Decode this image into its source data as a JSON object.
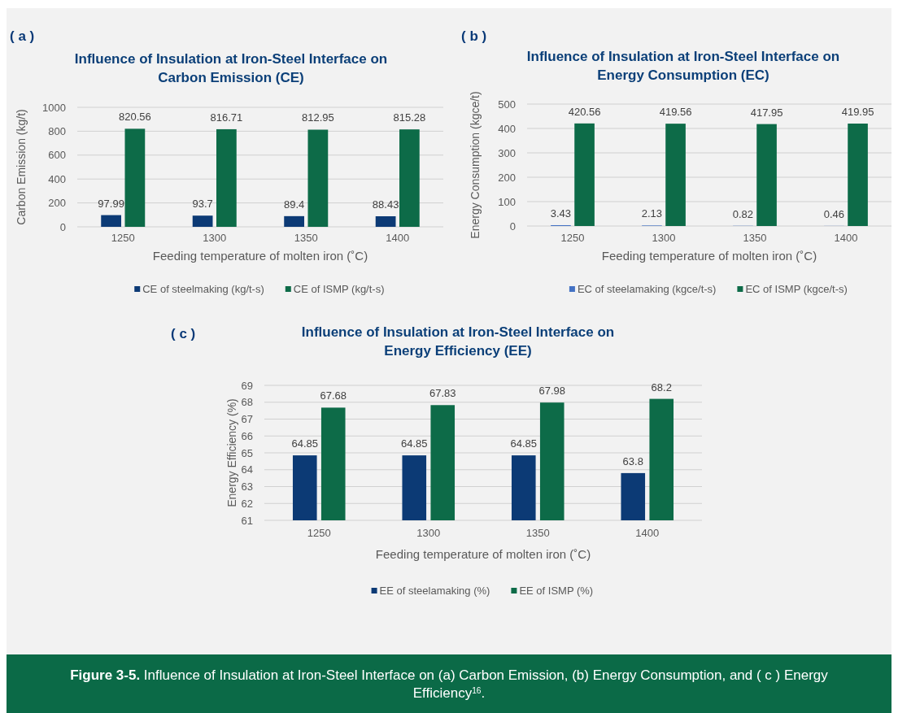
{
  "chart_data": [
    {
      "type": "bar",
      "title": "Influence of Insulation at Iron-Steel Interface on Carbon Emission (CE)",
      "xlabel": "Feeding temperature of molten iron (˚C)",
      "ylabel": "Carbon Emission (kg/t)",
      "categories": [
        "1250",
        "1300",
        "1350",
        "1400"
      ],
      "series": [
        {
          "name": "CE of steelmaking (kg/t-s)",
          "color": "#0c3a75",
          "values": [
            97.99,
            93.7,
            89.4,
            88.43
          ]
        },
        {
          "name": "CE of ISMP (kg/t-s)",
          "color": "#0d6b48",
          "values": [
            820.56,
            816.71,
            812.95,
            815.28
          ]
        }
      ],
      "ylim": [
        0,
        1000
      ],
      "yticks": [
        0,
        200,
        400,
        600,
        800,
        1000
      ],
      "grid": "y",
      "legend": "bottom",
      "data_labels": true,
      "annotations": [
        "( a )"
      ]
    },
    {
      "type": "bar",
      "title": "Influence of Insulation at Iron-Steel Interface on Energy Consumption (EC)",
      "xlabel": "Feeding temperature of molten iron (˚C)",
      "ylabel": "Energy Consumption (kgce/t)",
      "categories": [
        "1250",
        "1300",
        "1350",
        "1400"
      ],
      "series": [
        {
          "name": "EC of steelamaking (kgce/t-s)",
          "color": "#4472c4",
          "values": [
            3.43,
            2.13,
            0.82,
            0.46
          ]
        },
        {
          "name": "EC of ISMP (kgce/t-s)",
          "color": "#0d6b48",
          "values": [
            420.56,
            419.56,
            417.95,
            419.95
          ]
        }
      ],
      "ylim": [
        0,
        500
      ],
      "yticks": [
        0,
        100,
        200,
        300,
        400,
        500
      ],
      "grid": "y",
      "legend": "bottom",
      "data_labels": true,
      "annotations": [
        "( b )"
      ]
    },
    {
      "type": "bar",
      "title": "Influence of Insulation at Iron-Steel Interface on Energy Efficiency (EE)",
      "xlabel": "Feeding temperature of molten iron (˚C)",
      "ylabel": "Energy Efficiency (%)",
      "categories": [
        "1250",
        "1300",
        "1350",
        "1400"
      ],
      "series": [
        {
          "name": "EE of steelamaking (%)",
          "color": "#0c3a75",
          "values": [
            64.85,
            64.85,
            64.85,
            63.8
          ]
        },
        {
          "name": "EE of ISMP (%)",
          "color": "#0d6b48",
          "values": [
            67.68,
            67.83,
            67.98,
            68.2
          ]
        }
      ],
      "ylim": [
        61,
        69
      ],
      "yticks": [
        61,
        62,
        63,
        64,
        65,
        66,
        67,
        68,
        69
      ],
      "grid": "y",
      "legend": "bottom",
      "data_labels": true,
      "annotations": [
        "( c )",
        "Figure 3-5. Influence of Insulation at Iron-Steel Interface on (a) Carbon Emission, (b) Energy Consumption, and ( c ) Energy Efficiency$^{16}$."
      ]
    }
  ]
}
